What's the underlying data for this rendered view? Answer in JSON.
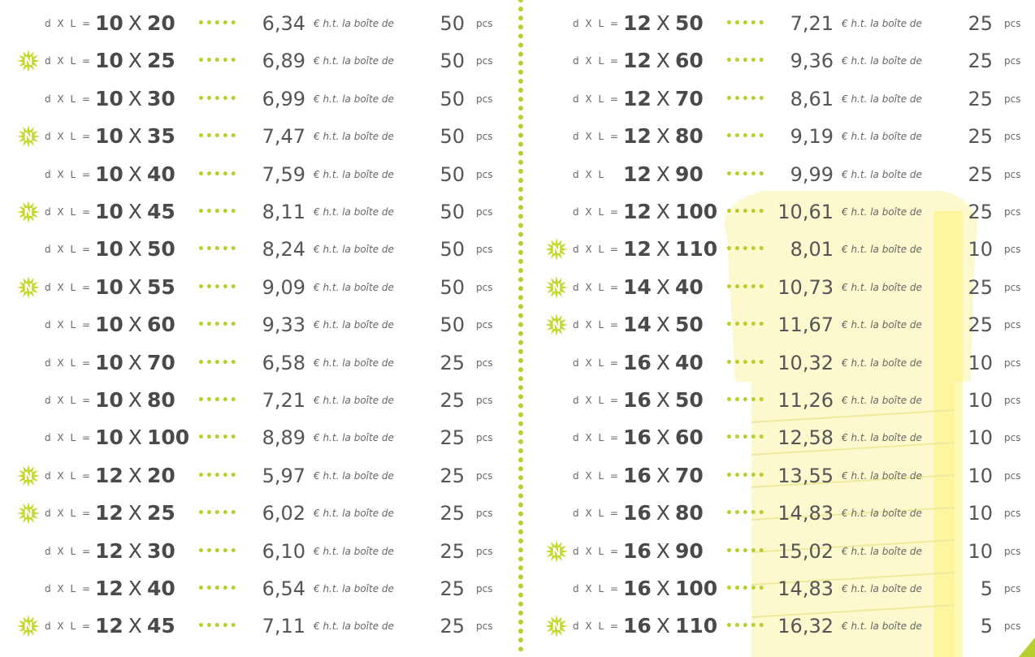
{
  "labels": {
    "sep": "X",
    "unit": "€ h.t. la boîte de",
    "pcs": "pcs",
    "badge": "N"
  },
  "columns": [
    {
      "rows": [
        {
          "new": false,
          "prefix": "d X L =",
          "d": "10",
          "l": "20",
          "price": "6,34",
          "qty": "50"
        },
        {
          "new": true,
          "prefix": "d X L =",
          "d": "10",
          "l": "25",
          "price": "6,89",
          "qty": "50"
        },
        {
          "new": false,
          "prefix": "d X L =",
          "d": "10",
          "l": "30",
          "price": "6,99",
          "qty": "50"
        },
        {
          "new": true,
          "prefix": "d X L =",
          "d": "10",
          "l": "35",
          "price": "7,47",
          "qty": "50"
        },
        {
          "new": false,
          "prefix": "d X L =",
          "d": "10",
          "l": "40",
          "price": "7,59",
          "qty": "50"
        },
        {
          "new": true,
          "prefix": "d X L =",
          "d": "10",
          "l": "45",
          "price": "8,11",
          "qty": "50"
        },
        {
          "new": false,
          "prefix": "d X L =",
          "d": "10",
          "l": "50",
          "price": "8,24",
          "qty": "50"
        },
        {
          "new": true,
          "prefix": "d X L =",
          "d": "10",
          "l": "55",
          "price": "9,09",
          "qty": "50"
        },
        {
          "new": false,
          "prefix": "d X L =",
          "d": "10",
          "l": "60",
          "price": "9,33",
          "qty": "50"
        },
        {
          "new": false,
          "prefix": "d X L =",
          "d": "10",
          "l": "70",
          "price": "6,58",
          "qty": "25"
        },
        {
          "new": false,
          "prefix": "d X L =",
          "d": "10",
          "l": "80",
          "price": "7,21",
          "qty": "25"
        },
        {
          "new": false,
          "prefix": "d X L =",
          "d": "10",
          "l": "100",
          "price": "8,89",
          "qty": "25"
        },
        {
          "new": true,
          "prefix": "d X L =",
          "d": "12",
          "l": "20",
          "price": "5,97",
          "qty": "25"
        },
        {
          "new": true,
          "prefix": "d X L =",
          "d": "12",
          "l": "25",
          "price": "6,02",
          "qty": "25"
        },
        {
          "new": false,
          "prefix": "d X L =",
          "d": "12",
          "l": "30",
          "price": "6,10",
          "qty": "25"
        },
        {
          "new": false,
          "prefix": "d X L =",
          "d": "12",
          "l": "40",
          "price": "6,54",
          "qty": "25"
        },
        {
          "new": true,
          "prefix": "d X L =",
          "d": "12",
          "l": "45",
          "price": "7,11",
          "qty": "25"
        }
      ]
    },
    {
      "rows": [
        {
          "new": false,
          "prefix": "d X L =",
          "d": "12",
          "l": "50",
          "price": "7,21",
          "qty": "25"
        },
        {
          "new": false,
          "prefix": "d X L =",
          "d": "12",
          "l": "60",
          "price": "9,36",
          "qty": "25"
        },
        {
          "new": false,
          "prefix": "d X L =",
          "d": "12",
          "l": "70",
          "price": "8,61",
          "qty": "25"
        },
        {
          "new": false,
          "prefix": "d X L =",
          "d": "12",
          "l": "80",
          "price": "9,19",
          "qty": "25"
        },
        {
          "new": false,
          "prefix": "d X L",
          "d": "12",
          "l": "90",
          "price": "9,99",
          "qty": "25"
        },
        {
          "new": false,
          "prefix": "d X L =",
          "d": "12",
          "l": "100",
          "price": "10,61",
          "qty": "25"
        },
        {
          "new": true,
          "prefix": "d X L =",
          "d": "12",
          "l": "110",
          "price": "8,01",
          "qty": "10"
        },
        {
          "new": true,
          "prefix": "d X L =",
          "d": "14",
          "l": "40",
          "price": "10,73",
          "qty": "25"
        },
        {
          "new": true,
          "prefix": "d X L =",
          "d": "14",
          "l": "50",
          "price": "11,67",
          "qty": "25"
        },
        {
          "new": false,
          "prefix": "d X L =",
          "d": "16",
          "l": "40",
          "price": "10,32",
          "qty": "10"
        },
        {
          "new": false,
          "prefix": "d X L =",
          "d": "16",
          "l": "50",
          "price": "11,26",
          "qty": "10"
        },
        {
          "new": false,
          "prefix": "d X L =",
          "d": "16",
          "l": "60",
          "price": "12,58",
          "qty": "10"
        },
        {
          "new": false,
          "prefix": "d X L =",
          "d": "16",
          "l": "70",
          "price": "13,55",
          "qty": "10"
        },
        {
          "new": false,
          "prefix": "d X L =",
          "d": "16",
          "l": "80",
          "price": "14,83",
          "qty": "10"
        },
        {
          "new": true,
          "prefix": "d X L =",
          "d": "16",
          "l": "90",
          "price": "15,02",
          "qty": "10"
        },
        {
          "new": false,
          "prefix": "d X L =",
          "d": "16",
          "l": "100",
          "price": "14,83",
          "qty": "5"
        },
        {
          "new": true,
          "prefix": "d X L =",
          "d": "16",
          "l": "110",
          "price": "16,32",
          "qty": "5"
        }
      ]
    }
  ]
}
